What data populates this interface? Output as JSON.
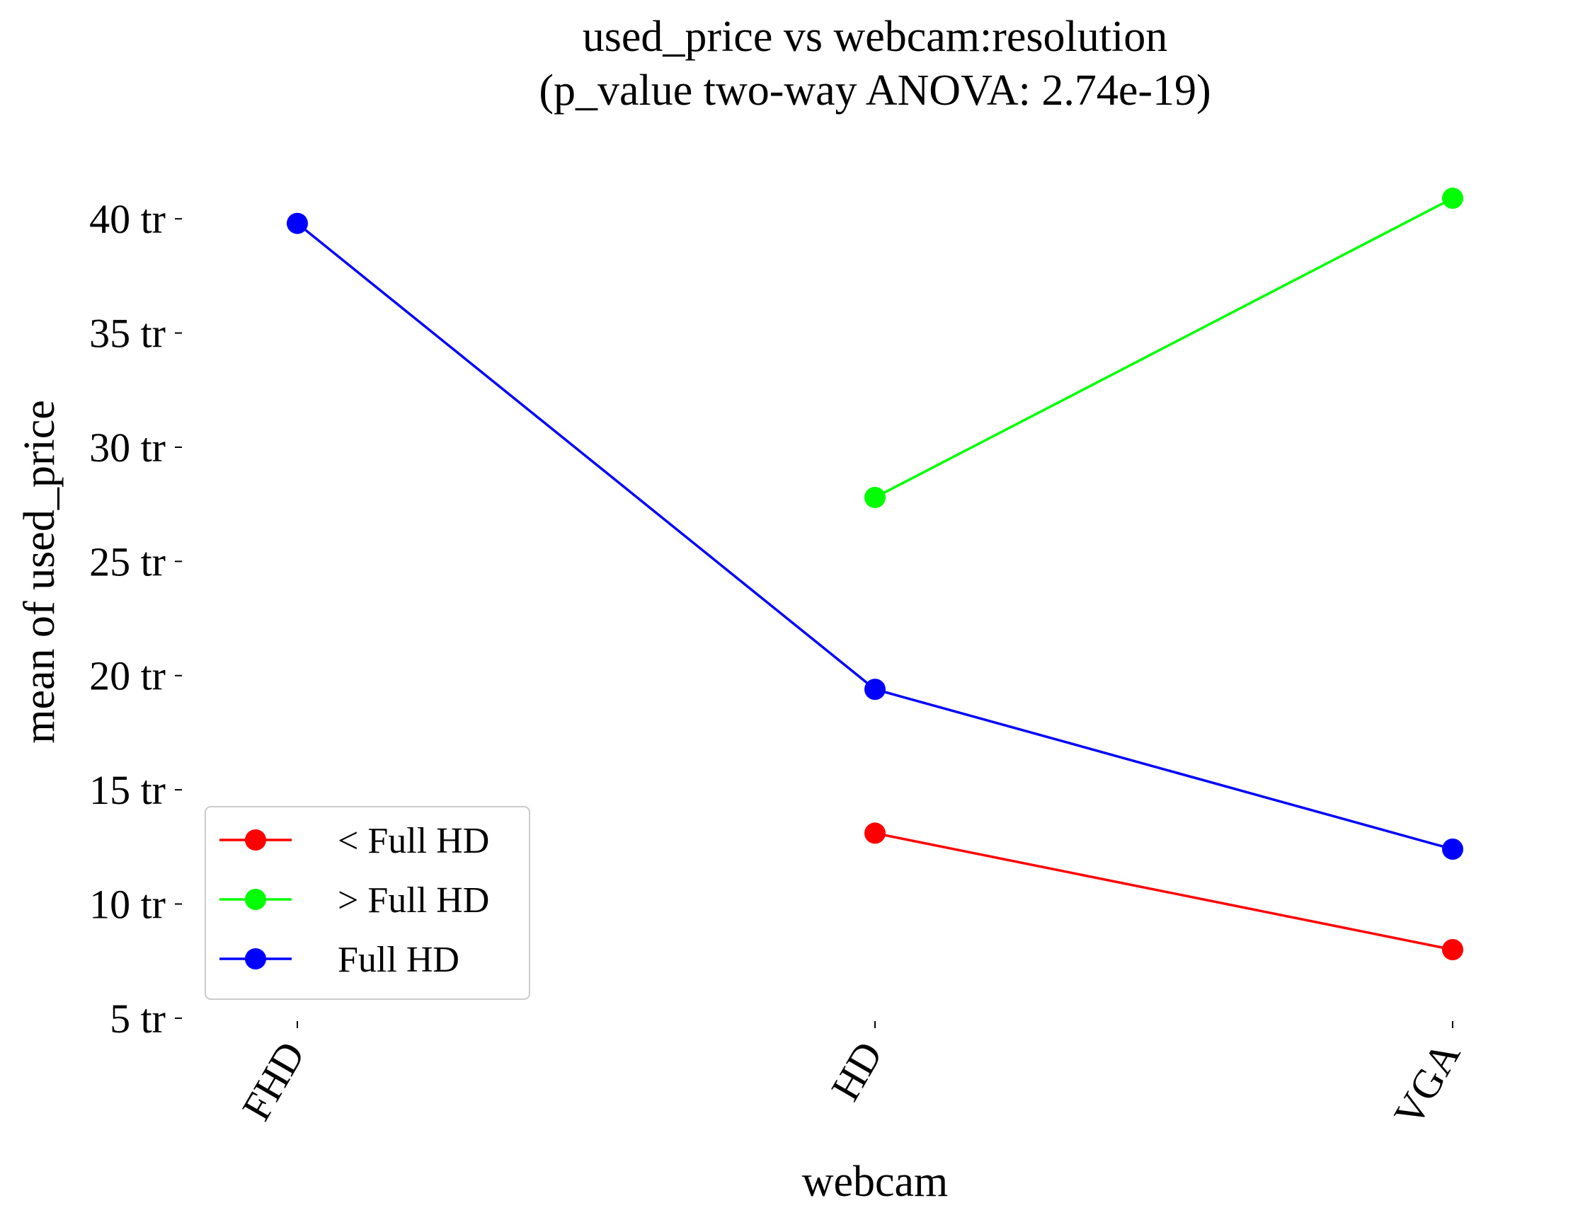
{
  "chart_data": {
    "type": "line",
    "title": "used_price vs webcam:resolution",
    "subtitle": "(p_value two-way ANOVA: 2.74e-19)",
    "xlabel": "webcam",
    "ylabel": "mean of used_price",
    "categories": [
      "FHD",
      "HD",
      "VGA"
    ],
    "y_ticks": [
      5,
      10,
      15,
      20,
      25,
      30,
      35,
      40
    ],
    "y_tick_labels": [
      "5 tr",
      "10 tr",
      "15 tr",
      "20 tr",
      "25 tr",
      "30 tr",
      "35 tr",
      "40 tr"
    ],
    "ylim": [
      4.5,
      42.3
    ],
    "grid": false,
    "legend_position": "lower-left",
    "series": [
      {
        "name": "< Full HD",
        "color": "#ff0000",
        "values": [
          null,
          13.1,
          8.0
        ]
      },
      {
        "name": "> Full HD",
        "color": "#00ff00",
        "values": [
          null,
          27.8,
          40.9
        ]
      },
      {
        "name": "Full HD",
        "color": "#0000ff",
        "values": [
          39.8,
          19.4,
          12.4
        ]
      }
    ]
  }
}
